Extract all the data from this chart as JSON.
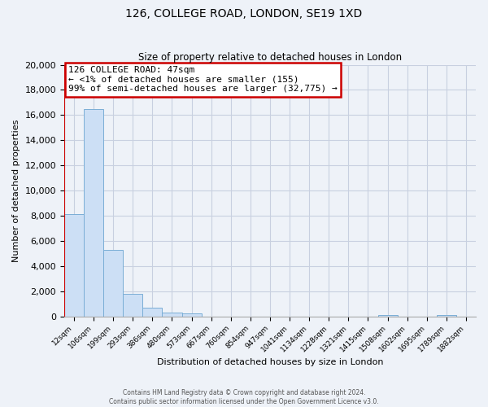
{
  "title": "126, COLLEGE ROAD, LONDON, SE19 1XD",
  "subtitle": "Size of property relative to detached houses in London",
  "xlabel": "Distribution of detached houses by size in London",
  "ylabel": "Number of detached properties",
  "bar_color": "#ccdff5",
  "bar_edge_color": "#7aaed6",
  "categories": [
    "12sqm",
    "106sqm",
    "199sqm",
    "293sqm",
    "386sqm",
    "480sqm",
    "573sqm",
    "667sqm",
    "760sqm",
    "854sqm",
    "947sqm",
    "1041sqm",
    "1134sqm",
    "1228sqm",
    "1321sqm",
    "1415sqm",
    "1508sqm",
    "1602sqm",
    "1695sqm",
    "1789sqm",
    "1882sqm"
  ],
  "values": [
    8100,
    16500,
    5300,
    1800,
    700,
    300,
    200,
    0,
    0,
    0,
    0,
    0,
    0,
    0,
    0,
    0,
    100,
    0,
    0,
    100,
    0
  ],
  "ylim": [
    0,
    20000
  ],
  "yticks": [
    0,
    2000,
    4000,
    6000,
    8000,
    10000,
    12000,
    14000,
    16000,
    18000,
    20000
  ],
  "annotation_title": "126 COLLEGE ROAD: 47sqm",
  "annotation_line2": "← <1% of detached houses are smaller (155)",
  "annotation_line3": "99% of semi-detached houses are larger (32,775) →",
  "annotation_box_color": "white",
  "annotation_border_color": "#cc0000",
  "footer_line1": "Contains HM Land Registry data © Crown copyright and database right 2024.",
  "footer_line2": "Contains public sector information licensed under the Open Government Licence v3.0.",
  "grid_color": "#c8d0e0",
  "background_color": "#eef2f8",
  "vline_color": "#cc0000"
}
